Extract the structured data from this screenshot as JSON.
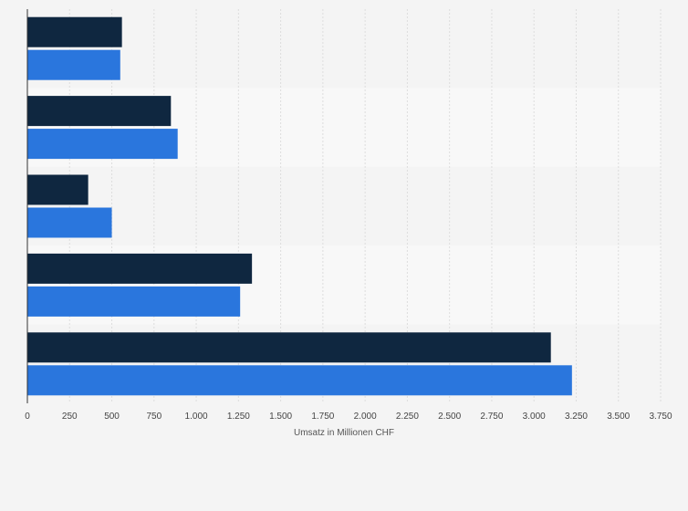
{
  "chart_data": {
    "type": "bar",
    "orientation": "horizontal",
    "categories": [
      "",
      "",
      "",
      "",
      ""
    ],
    "series": [
      {
        "values": [
          560,
          850,
          360,
          1330,
          3100
        ]
      },
      {
        "values": [
          550,
          890,
          500,
          1260,
          3225
        ]
      }
    ],
    "xlabel": "Umsatz in Millionen CHF",
    "ylabel": "",
    "xlim": [
      0,
      3750
    ],
    "x_ticks": [
      0,
      250,
      500,
      750,
      1000,
      1250,
      1500,
      1750,
      2000,
      2250,
      2500,
      2750,
      3000,
      3250,
      3500,
      3750
    ],
    "x_tick_labels": [
      "0",
      "250",
      "500",
      "750",
      "1.000",
      "1.250",
      "1.500",
      "1.750",
      "2.000",
      "2.250",
      "2.500",
      "2.750",
      "3.000",
      "3.250",
      "3.500",
      "3.750"
    ],
    "grid": true,
    "legend": "none"
  },
  "colors": {
    "background": "#f4f4f4",
    "band_alt": "#f8f8f8",
    "gridline": "#dddddd",
    "axis": "#333333",
    "series": [
      "#0f2740",
      "#2a76dd"
    ]
  }
}
